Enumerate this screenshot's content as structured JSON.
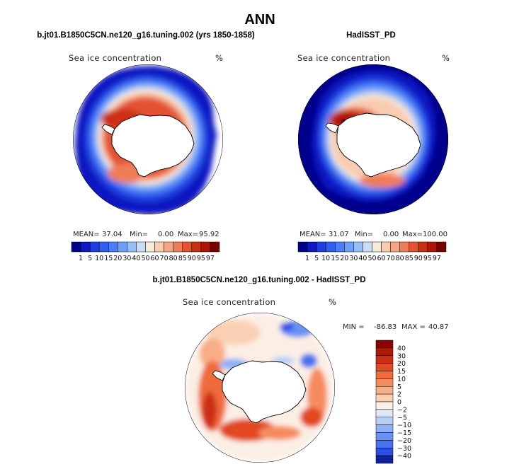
{
  "chart_data": {
    "type": "polar_contour_map",
    "title": "ANN",
    "panels": [
      {
        "id": "model",
        "title": "b.jt01.B1850C5CN.ne120_g16.tuning.002 (yrs 1850-1858)",
        "variable": "Sea ice concentration",
        "units": "%",
        "stats": {
          "mean_label": "MEAN=",
          "mean": "37.04",
          "min_label": "Min=",
          "min": "0.00",
          "max_label": "Max=",
          "max": "95.92"
        },
        "colorbar": {
          "orientation": "horizontal",
          "levels": [
            "1",
            "5",
            "10",
            "15",
            "20",
            "30",
            "40",
            "50",
            "60",
            "70",
            "80",
            "85",
            "90",
            "95",
            "97"
          ],
          "colors": [
            "#00008c",
            "#0a19c0",
            "#1e3ee0",
            "#2f5ef0",
            "#4a7ef6",
            "#6e9ef8",
            "#98bef8",
            "#c8dcf8",
            "#f8ead8",
            "#f9cbb0",
            "#f7a584",
            "#f07b58",
            "#e35130",
            "#cc2e14",
            "#ad1508",
            "#7a0000"
          ]
        }
      },
      {
        "id": "obs",
        "title": "HadISST_PD",
        "variable": "Sea ice concentration",
        "units": "%",
        "stats": {
          "mean_label": "MEAN=",
          "mean": "31.07",
          "min_label": "Min=",
          "min": "0.00",
          "max_label": "Max=",
          "max": "100.00"
        },
        "colorbar": {
          "orientation": "horizontal",
          "levels": [
            "1",
            "5",
            "10",
            "15",
            "20",
            "30",
            "40",
            "50",
            "60",
            "70",
            "80",
            "85",
            "90",
            "95",
            "97"
          ],
          "colors": [
            "#00008c",
            "#0a19c0",
            "#1e3ee0",
            "#2f5ef0",
            "#4a7ef6",
            "#6e9ef8",
            "#98bef8",
            "#c8dcf8",
            "#f8ead8",
            "#f9cbb0",
            "#f7a584",
            "#f07b58",
            "#e35130",
            "#cc2e14",
            "#ad1508",
            "#7a0000"
          ]
        }
      },
      {
        "id": "diff",
        "title": "b.jt01.B1850C5CN.ne120_g16.tuning.002 - HadISST_PD",
        "variable": "Sea ice concentration",
        "units": "%",
        "stats": {
          "min_label": "MIN = ",
          "min": "-86.83",
          "max_label": "MAX = ",
          "max": "40.87"
        },
        "colorbar": {
          "orientation": "vertical",
          "levels": [
            "40",
            "30",
            "20",
            "15",
            "10",
            "5",
            "2",
            "0",
            "−2",
            "−5",
            "−10",
            "−15",
            "−20",
            "−30",
            "−40"
          ],
          "colors": [
            "#8c0000",
            "#b01808",
            "#cc2e12",
            "#e24a24",
            "#ef6a3c",
            "#f58c5e",
            "#f8ae86",
            "#fad0b4",
            "#fbeee4",
            "#dde8f8",
            "#b8d0f8",
            "#8eb0f6",
            "#6a90f2",
            "#4a70ee",
            "#2a4ee4",
            "#10239c"
          ]
        }
      }
    ]
  }
}
